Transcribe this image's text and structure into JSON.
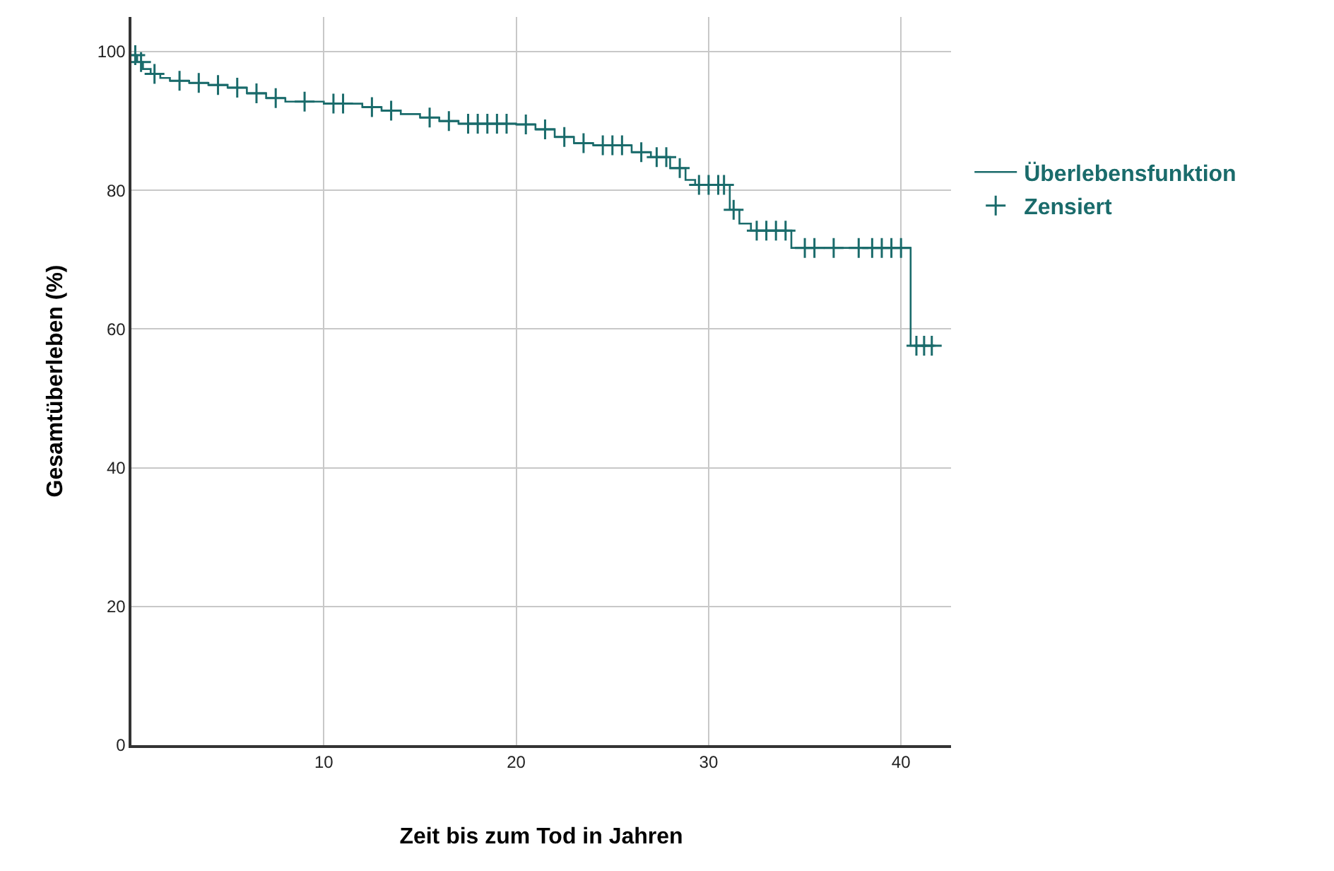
{
  "chart_data": {
    "type": "step",
    "xlabel": "Zeit bis zum Tod in Jahren",
    "ylabel": "Gesamtüberleben (%)",
    "xlim": [
      0,
      42.6
    ],
    "ylim": [
      0,
      105
    ],
    "xticks": [
      10,
      20,
      30,
      40
    ],
    "yticks": [
      0,
      20,
      40,
      60,
      80,
      100
    ],
    "grid": true,
    "legend": "top right",
    "line_style": "solid",
    "series": [
      {
        "name": "Überlebensfunktion",
        "color": "#1a6b6b",
        "marker": "none",
        "x": [
          0,
          0.3,
          0.6,
          1,
          1.5,
          2,
          3,
          4,
          5,
          6,
          7,
          8,
          10,
          12,
          13,
          14,
          15,
          16,
          17,
          20,
          21,
          22,
          23,
          24,
          26,
          27,
          28,
          28.8,
          29.3,
          31.1,
          31.6,
          32.2,
          34.3,
          40.5,
          41.8
        ],
        "values": [
          99.5,
          98.5,
          97.5,
          96.8,
          96.2,
          95.8,
          95.5,
          95.2,
          94.8,
          94,
          93.3,
          92.8,
          92.5,
          92,
          91.5,
          91,
          90.5,
          90,
          89.6,
          89.5,
          88.8,
          87.7,
          86.8,
          86.5,
          85.5,
          84.8,
          83.2,
          81.5,
          80.8,
          77.2,
          75.2,
          74.2,
          71.7,
          57.6,
          57.6
        ]
      },
      {
        "name": "Zensiert",
        "type": "scatter",
        "color": "#1a6b6b",
        "marker": "cross",
        "x": [
          0.2,
          0.5,
          1.2,
          2.5,
          3.5,
          4.5,
          5.5,
          6.5,
          7.5,
          9,
          10.5,
          11,
          12.5,
          13.5,
          15.5,
          16.5,
          17.5,
          18,
          18.5,
          19,
          19.5,
          20.5,
          21.5,
          22.5,
          23.5,
          24.5,
          25,
          25.5,
          26.5,
          27.3,
          27.8,
          28.5,
          29.5,
          30,
          30.5,
          30.8,
          31.3,
          32.5,
          33,
          33.5,
          34,
          35,
          35.5,
          36.5,
          37.8,
          38.5,
          39,
          39.5,
          40,
          40.8,
          41.2,
          41.6
        ],
        "values": [
          99.5,
          98.5,
          96.8,
          95.8,
          95.5,
          95.2,
          94.8,
          94,
          93.3,
          92.8,
          92.5,
          92.5,
          92,
          91.5,
          90.5,
          90,
          89.6,
          89.6,
          89.6,
          89.6,
          89.6,
          89.5,
          88.8,
          87.7,
          86.8,
          86.5,
          86.5,
          86.5,
          85.5,
          84.8,
          84.8,
          83.2,
          80.8,
          80.8,
          80.8,
          80.8,
          77.2,
          74.2,
          74.2,
          74.2,
          74.2,
          71.7,
          71.7,
          71.7,
          71.7,
          71.7,
          71.7,
          71.7,
          71.7,
          57.6,
          57.6,
          57.6
        ]
      }
    ]
  }
}
